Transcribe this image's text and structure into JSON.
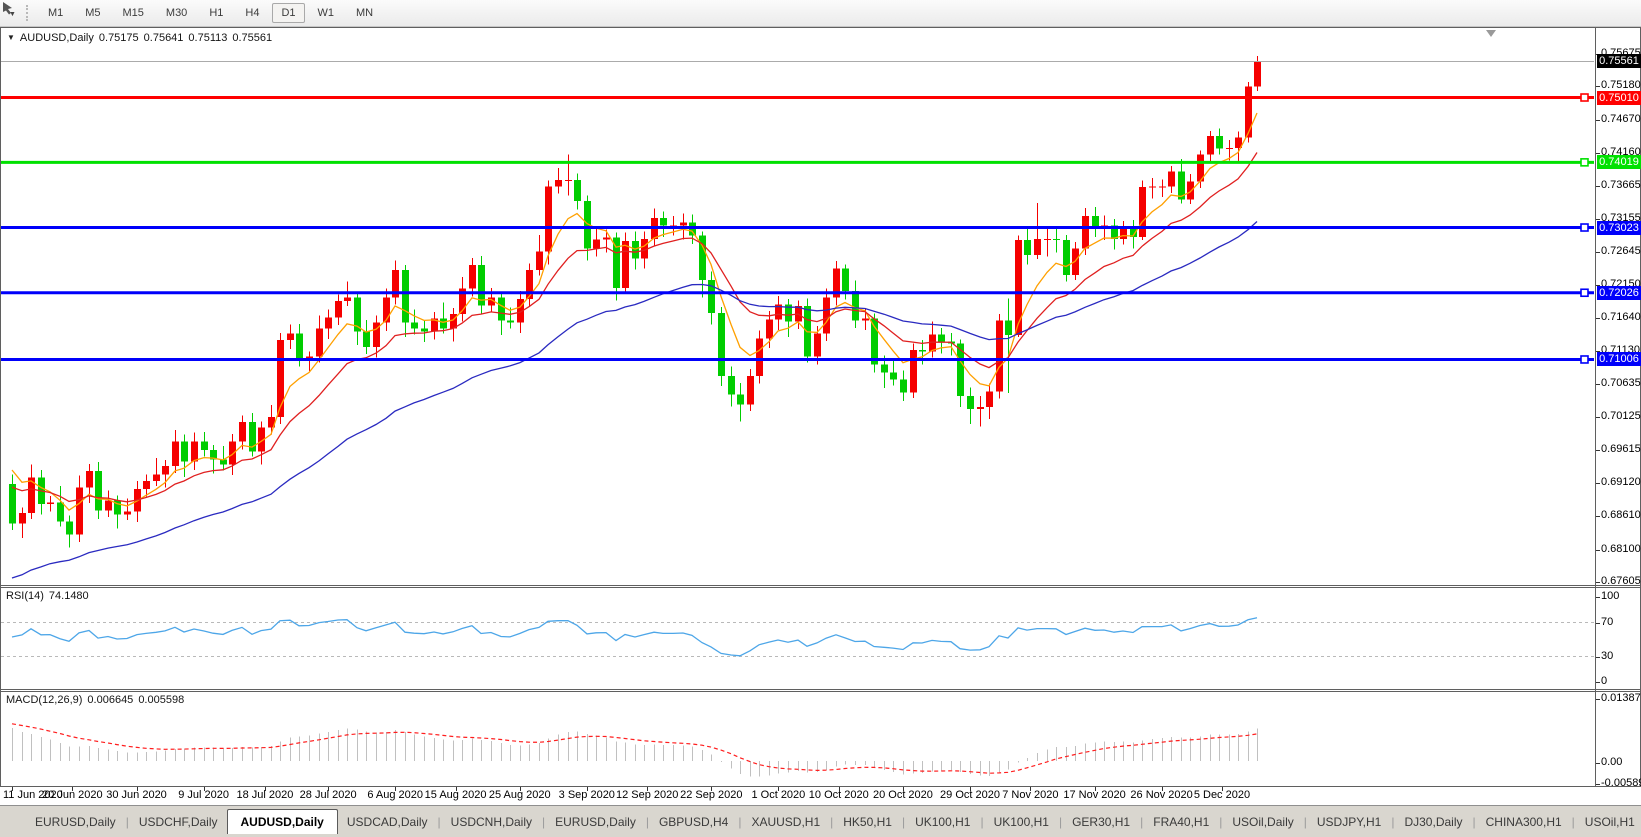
{
  "toolbar": {
    "pointer_tool": "cursor-icon",
    "timeframes": [
      {
        "label": "M1",
        "active": false
      },
      {
        "label": "M5",
        "active": false
      },
      {
        "label": "M15",
        "active": false
      },
      {
        "label": "M30",
        "active": false
      },
      {
        "label": "H1",
        "active": false
      },
      {
        "label": "H4",
        "active": false
      },
      {
        "label": "D1",
        "active": true
      },
      {
        "label": "W1",
        "active": false
      },
      {
        "label": "MN",
        "active": false
      }
    ]
  },
  "header": {
    "symbol": "AUDUSD,Daily",
    "open": "0.75175",
    "high": "0.75641",
    "low": "0.75113",
    "close": "0.75561"
  },
  "chart_data": {
    "type": "candlestick",
    "symbol": "AUDUSD",
    "timeframe": "Daily",
    "up_color": "#F50000",
    "down_color": "#00CD00",
    "current_bid": "0.75561",
    "current_bid_value": 0.75561,
    "price_ticks": [
      "0.75675",
      "0.75180",
      "0.74670",
      "0.74160",
      "0.73665",
      "0.73155",
      "0.72645",
      "0.72150",
      "0.71640",
      "0.71130",
      "0.70635",
      "0.70125",
      "0.69615",
      "0.69120",
      "0.68610",
      "0.68100",
      "0.67605"
    ],
    "x_labels": [
      {
        "text": "11 Jun 2020",
        "bar": 0
      },
      {
        "text": "20 Jun 2020",
        "bar": 6.3
      },
      {
        "text": "30 Jun 2020",
        "bar": 13
      },
      {
        "text": "9 Jul 2020",
        "bar": 20
      },
      {
        "text": "18 Jul 2020",
        "bar": 26.4
      },
      {
        "text": "28 Jul 2020",
        "bar": 33
      },
      {
        "text": "6 Aug 2020",
        "bar": 40
      },
      {
        "text": "15 Aug 2020",
        "bar": 46.3
      },
      {
        "text": "25 Aug 2020",
        "bar": 53
      },
      {
        "text": "3 Sep 2020",
        "bar": 60
      },
      {
        "text": "12 Sep 2020",
        "bar": 66.3
      },
      {
        "text": "22 Sep 2020",
        "bar": 73
      },
      {
        "text": "1 Oct 2020",
        "bar": 80
      },
      {
        "text": "10 Oct 2020",
        "bar": 86.3
      },
      {
        "text": "20 Oct 2020",
        "bar": 93
      },
      {
        "text": "29 Oct 2020",
        "bar": 100
      },
      {
        "text": "7 Nov 2020",
        "bar": 106.3
      },
      {
        "text": "17 Nov 2020",
        "bar": 113
      },
      {
        "text": "26 Nov 2020",
        "bar": 120
      },
      {
        "text": "5 Dec 2020",
        "bar": 126.3
      }
    ],
    "hlines": [
      {
        "price": 0.7501,
        "label": "0.75010",
        "color": "#FF0000"
      },
      {
        "price": 0.74019,
        "label": "0.74019",
        "color": "#00E100"
      },
      {
        "price": 0.73023,
        "label": "0.73023",
        "color": "#0000FA"
      },
      {
        "price": 0.72026,
        "label": "0.72026",
        "color": "#0000FA"
      },
      {
        "price": 0.71006,
        "label": "0.71006",
        "color": "#0000FA"
      }
    ],
    "moving_averages": [
      {
        "name": "fast",
        "type": "ema",
        "period": 6,
        "color": "#FFA000"
      },
      {
        "name": "medium",
        "type": "ema",
        "period": 14,
        "color": "#E02020"
      },
      {
        "name": "slow",
        "type": "ema",
        "period": 40,
        "color": "#2A2AC0"
      }
    ],
    "rsi": {
      "label": "RSI(14)",
      "period": 14,
      "value": "74.1480",
      "levels": [
        70,
        30
      ],
      "scale_ticks": [
        "100",
        "70",
        "30",
        "0"
      ],
      "color": "#4DA6E8"
    },
    "macd": {
      "label": "MACD(12,26,9)",
      "fast": 12,
      "slow": 26,
      "signal": 9,
      "macd_value": "0.006645",
      "signal_value": "0.005598",
      "scale_ticks": [
        "0.013873",
        "0.00",
        "-0.005891"
      ],
      "histogram_color": "#C0C0C0",
      "signal_color": "#FF1E1E"
    },
    "candles": [
      [
        0.691,
        0.6925,
        0.684,
        0.685
      ],
      [
        0.685,
        0.6874,
        0.6828,
        0.6866
      ],
      [
        0.6866,
        0.694,
        0.6857,
        0.692
      ],
      [
        0.692,
        0.6932,
        0.6864,
        0.688
      ],
      [
        0.688,
        0.6892,
        0.6868,
        0.6882
      ],
      [
        0.6882,
        0.6907,
        0.6845,
        0.6853
      ],
      [
        0.6853,
        0.6862,
        0.6813,
        0.6833
      ],
      [
        0.6833,
        0.6923,
        0.6822,
        0.6905
      ],
      [
        0.6905,
        0.6941,
        0.6881,
        0.693
      ],
      [
        0.693,
        0.6944,
        0.6857,
        0.687
      ],
      [
        0.687,
        0.69,
        0.686,
        0.6885
      ],
      [
        0.6885,
        0.6893,
        0.6842,
        0.6864
      ],
      [
        0.6864,
        0.6888,
        0.6855,
        0.6868
      ],
      [
        0.6868,
        0.6915,
        0.6852,
        0.6903
      ],
      [
        0.6903,
        0.6925,
        0.6891,
        0.6915
      ],
      [
        0.6915,
        0.695,
        0.6907,
        0.6925
      ],
      [
        0.6925,
        0.6947,
        0.6905,
        0.6938
      ],
      [
        0.6938,
        0.6993,
        0.6927,
        0.6975
      ],
      [
        0.6975,
        0.6986,
        0.6921,
        0.6945
      ],
      [
        0.6945,
        0.6989,
        0.6932,
        0.6975
      ],
      [
        0.6975,
        0.699,
        0.6952,
        0.6962
      ],
      [
        0.6962,
        0.697,
        0.6926,
        0.6948
      ],
      [
        0.6948,
        0.6968,
        0.6931,
        0.694
      ],
      [
        0.694,
        0.6987,
        0.6924,
        0.6975
      ],
      [
        0.6975,
        0.7015,
        0.6963,
        0.7005
      ],
      [
        0.7005,
        0.7019,
        0.6952,
        0.696
      ],
      [
        0.696,
        0.7006,
        0.694,
        0.6997
      ],
      [
        0.6997,
        0.7031,
        0.6986,
        0.7013
      ],
      [
        0.7013,
        0.7141,
        0.7002,
        0.713
      ],
      [
        0.713,
        0.7154,
        0.7117,
        0.714
      ],
      [
        0.714,
        0.7155,
        0.709,
        0.71
      ],
      [
        0.71,
        0.7113,
        0.7083,
        0.7105
      ],
      [
        0.7105,
        0.7168,
        0.7096,
        0.7148
      ],
      [
        0.7148,
        0.7177,
        0.7132,
        0.7165
      ],
      [
        0.7165,
        0.72,
        0.7153,
        0.719
      ],
      [
        0.719,
        0.722,
        0.7182,
        0.7195
      ],
      [
        0.7195,
        0.7204,
        0.7123,
        0.7143
      ],
      [
        0.7143,
        0.7161,
        0.7109,
        0.712
      ],
      [
        0.712,
        0.7168,
        0.7104,
        0.7157
      ],
      [
        0.7157,
        0.7209,
        0.7144,
        0.7195
      ],
      [
        0.7195,
        0.7252,
        0.7185,
        0.7237
      ],
      [
        0.7237,
        0.7245,
        0.7135,
        0.7157
      ],
      [
        0.7157,
        0.7177,
        0.7139,
        0.7148
      ],
      [
        0.7148,
        0.716,
        0.7127,
        0.7143
      ],
      [
        0.7143,
        0.7173,
        0.7131,
        0.7163
      ],
      [
        0.7163,
        0.7188,
        0.714,
        0.7148
      ],
      [
        0.7148,
        0.7179,
        0.7128,
        0.717
      ],
      [
        0.717,
        0.7227,
        0.7159,
        0.7209
      ],
      [
        0.7209,
        0.7256,
        0.7197,
        0.7245
      ],
      [
        0.7245,
        0.7259,
        0.717,
        0.7183
      ],
      [
        0.7183,
        0.721,
        0.7173,
        0.7195
      ],
      [
        0.7195,
        0.7203,
        0.7138,
        0.716
      ],
      [
        0.716,
        0.718,
        0.7148,
        0.7157
      ],
      [
        0.7157,
        0.7205,
        0.7141,
        0.7193
      ],
      [
        0.7193,
        0.7247,
        0.7181,
        0.7237
      ],
      [
        0.7237,
        0.7291,
        0.7229,
        0.7266
      ],
      [
        0.7266,
        0.7374,
        0.7246,
        0.7365
      ],
      [
        0.7365,
        0.7393,
        0.7354,
        0.7375
      ],
      [
        0.7375,
        0.7414,
        0.7351,
        0.7375
      ],
      [
        0.7375,
        0.7385,
        0.733,
        0.7343
      ],
      [
        0.7343,
        0.7351,
        0.7252,
        0.727
      ],
      [
        0.727,
        0.73,
        0.7258,
        0.7284
      ],
      [
        0.7284,
        0.7299,
        0.7264,
        0.7287
      ],
      [
        0.7287,
        0.7295,
        0.7191,
        0.721
      ],
      [
        0.721,
        0.7295,
        0.7204,
        0.7282
      ],
      [
        0.7282,
        0.7296,
        0.7238,
        0.7255
      ],
      [
        0.7255,
        0.7296,
        0.724,
        0.7285
      ],
      [
        0.7285,
        0.7331,
        0.7274,
        0.7317
      ],
      [
        0.7317,
        0.7327,
        0.7288,
        0.7305
      ],
      [
        0.7305,
        0.732,
        0.729,
        0.7305
      ],
      [
        0.7305,
        0.7324,
        0.7284,
        0.731
      ],
      [
        0.731,
        0.7322,
        0.7277,
        0.729
      ],
      [
        0.729,
        0.7296,
        0.7195,
        0.7222
      ],
      [
        0.7222,
        0.7235,
        0.7154,
        0.7172
      ],
      [
        0.7172,
        0.7181,
        0.706,
        0.7075
      ],
      [
        0.7075,
        0.709,
        0.7029,
        0.7047
      ],
      [
        0.7047,
        0.7065,
        0.7006,
        0.7032
      ],
      [
        0.7032,
        0.7086,
        0.7022,
        0.7075
      ],
      [
        0.7075,
        0.7145,
        0.7064,
        0.7133
      ],
      [
        0.7133,
        0.7175,
        0.7118,
        0.7162
      ],
      [
        0.7162,
        0.7198,
        0.7146,
        0.7185
      ],
      [
        0.7185,
        0.7193,
        0.7135,
        0.7159
      ],
      [
        0.7159,
        0.7191,
        0.7147,
        0.7182
      ],
      [
        0.7182,
        0.7194,
        0.7096,
        0.7105
      ],
      [
        0.7105,
        0.7152,
        0.7093,
        0.714
      ],
      [
        0.714,
        0.7209,
        0.7129,
        0.7195
      ],
      [
        0.7195,
        0.7251,
        0.7183,
        0.724
      ],
      [
        0.724,
        0.7246,
        0.7192,
        0.7205
      ],
      [
        0.7205,
        0.7221,
        0.7149,
        0.716
      ],
      [
        0.716,
        0.7179,
        0.7146,
        0.7163
      ],
      [
        0.7163,
        0.7171,
        0.7081,
        0.7093
      ],
      [
        0.7093,
        0.7107,
        0.7057,
        0.7081
      ],
      [
        0.7081,
        0.7098,
        0.7061,
        0.707
      ],
      [
        0.707,
        0.7084,
        0.7037,
        0.705
      ],
      [
        0.705,
        0.7125,
        0.7042,
        0.7115
      ],
      [
        0.7115,
        0.713,
        0.7093,
        0.7113
      ],
      [
        0.7113,
        0.7159,
        0.7104,
        0.7139
      ],
      [
        0.7139,
        0.7149,
        0.711,
        0.7128
      ],
      [
        0.7128,
        0.7141,
        0.7107,
        0.7125
      ],
      [
        0.7125,
        0.7131,
        0.7028,
        0.7045
      ],
      [
        0.7045,
        0.7058,
        0.7002,
        0.7025
      ],
      [
        0.7025,
        0.7045,
        0.6998,
        0.7028
      ],
      [
        0.7028,
        0.7064,
        0.701,
        0.7052
      ],
      [
        0.7052,
        0.717,
        0.7041,
        0.716
      ],
      [
        0.716,
        0.7194,
        0.7049,
        0.7138
      ],
      [
        0.7138,
        0.729,
        0.7135,
        0.7283
      ],
      [
        0.7283,
        0.73,
        0.7246,
        0.726
      ],
      [
        0.726,
        0.734,
        0.7254,
        0.7285
      ],
      [
        0.7285,
        0.7302,
        0.7258,
        0.7285
      ],
      [
        0.7285,
        0.7301,
        0.7264,
        0.7283
      ],
      [
        0.7283,
        0.7291,
        0.722,
        0.723
      ],
      [
        0.723,
        0.728,
        0.7222,
        0.727
      ],
      [
        0.727,
        0.7332,
        0.726,
        0.732
      ],
      [
        0.732,
        0.7334,
        0.7288,
        0.73
      ],
      [
        0.73,
        0.7321,
        0.7283,
        0.7305
      ],
      [
        0.7305,
        0.7315,
        0.7269,
        0.7285
      ],
      [
        0.7285,
        0.7312,
        0.7276,
        0.73
      ],
      [
        0.73,
        0.7314,
        0.727,
        0.7288
      ],
      [
        0.7288,
        0.7374,
        0.7283,
        0.7364
      ],
      [
        0.7364,
        0.7378,
        0.7347,
        0.7365
      ],
      [
        0.7365,
        0.7376,
        0.7349,
        0.7365
      ],
      [
        0.7365,
        0.7396,
        0.7355,
        0.7388
      ],
      [
        0.7388,
        0.7407,
        0.7339,
        0.7345
      ],
      [
        0.7345,
        0.7384,
        0.7338,
        0.7373
      ],
      [
        0.7373,
        0.742,
        0.7363,
        0.7414
      ],
      [
        0.7414,
        0.745,
        0.7404,
        0.7442
      ],
      [
        0.7442,
        0.7454,
        0.7414,
        0.7423
      ],
      [
        0.7423,
        0.7436,
        0.7405,
        0.7424
      ],
      [
        0.7424,
        0.7449,
        0.7401,
        0.744
      ],
      [
        0.744,
        0.7525,
        0.7432,
        0.7518
      ],
      [
        0.75175,
        0.75641,
        0.75113,
        0.75561
      ]
    ]
  },
  "tabs": {
    "items": [
      {
        "label": "EURUSD,Daily",
        "active": false
      },
      {
        "label": "USDCHF,Daily",
        "active": false
      },
      {
        "label": "AUDUSD,Daily",
        "active": true
      },
      {
        "label": "USDCAD,Daily",
        "active": false
      },
      {
        "label": "USDCNH,Daily",
        "active": false
      },
      {
        "label": "EURUSD,Daily",
        "active": false
      },
      {
        "label": "GBPUSD,H4",
        "active": false
      },
      {
        "label": "XAUUSD,H1",
        "active": false
      },
      {
        "label": "HK50,H1",
        "active": false
      },
      {
        "label": "UK100,H1",
        "active": false
      },
      {
        "label": "UK100,H1",
        "active": false
      },
      {
        "label": "GER30,H1",
        "active": false
      },
      {
        "label": "FRA40,H1",
        "active": false
      },
      {
        "label": "USOil,Daily",
        "active": false
      },
      {
        "label": "USDJPY,H1",
        "active": false
      },
      {
        "label": "DJ30,Daily",
        "active": false
      },
      {
        "label": "CHINA300,H1",
        "active": false
      },
      {
        "label": "USOil,H1",
        "active": false
      }
    ],
    "scroll_left": "◄",
    "scroll_right": "►"
  }
}
